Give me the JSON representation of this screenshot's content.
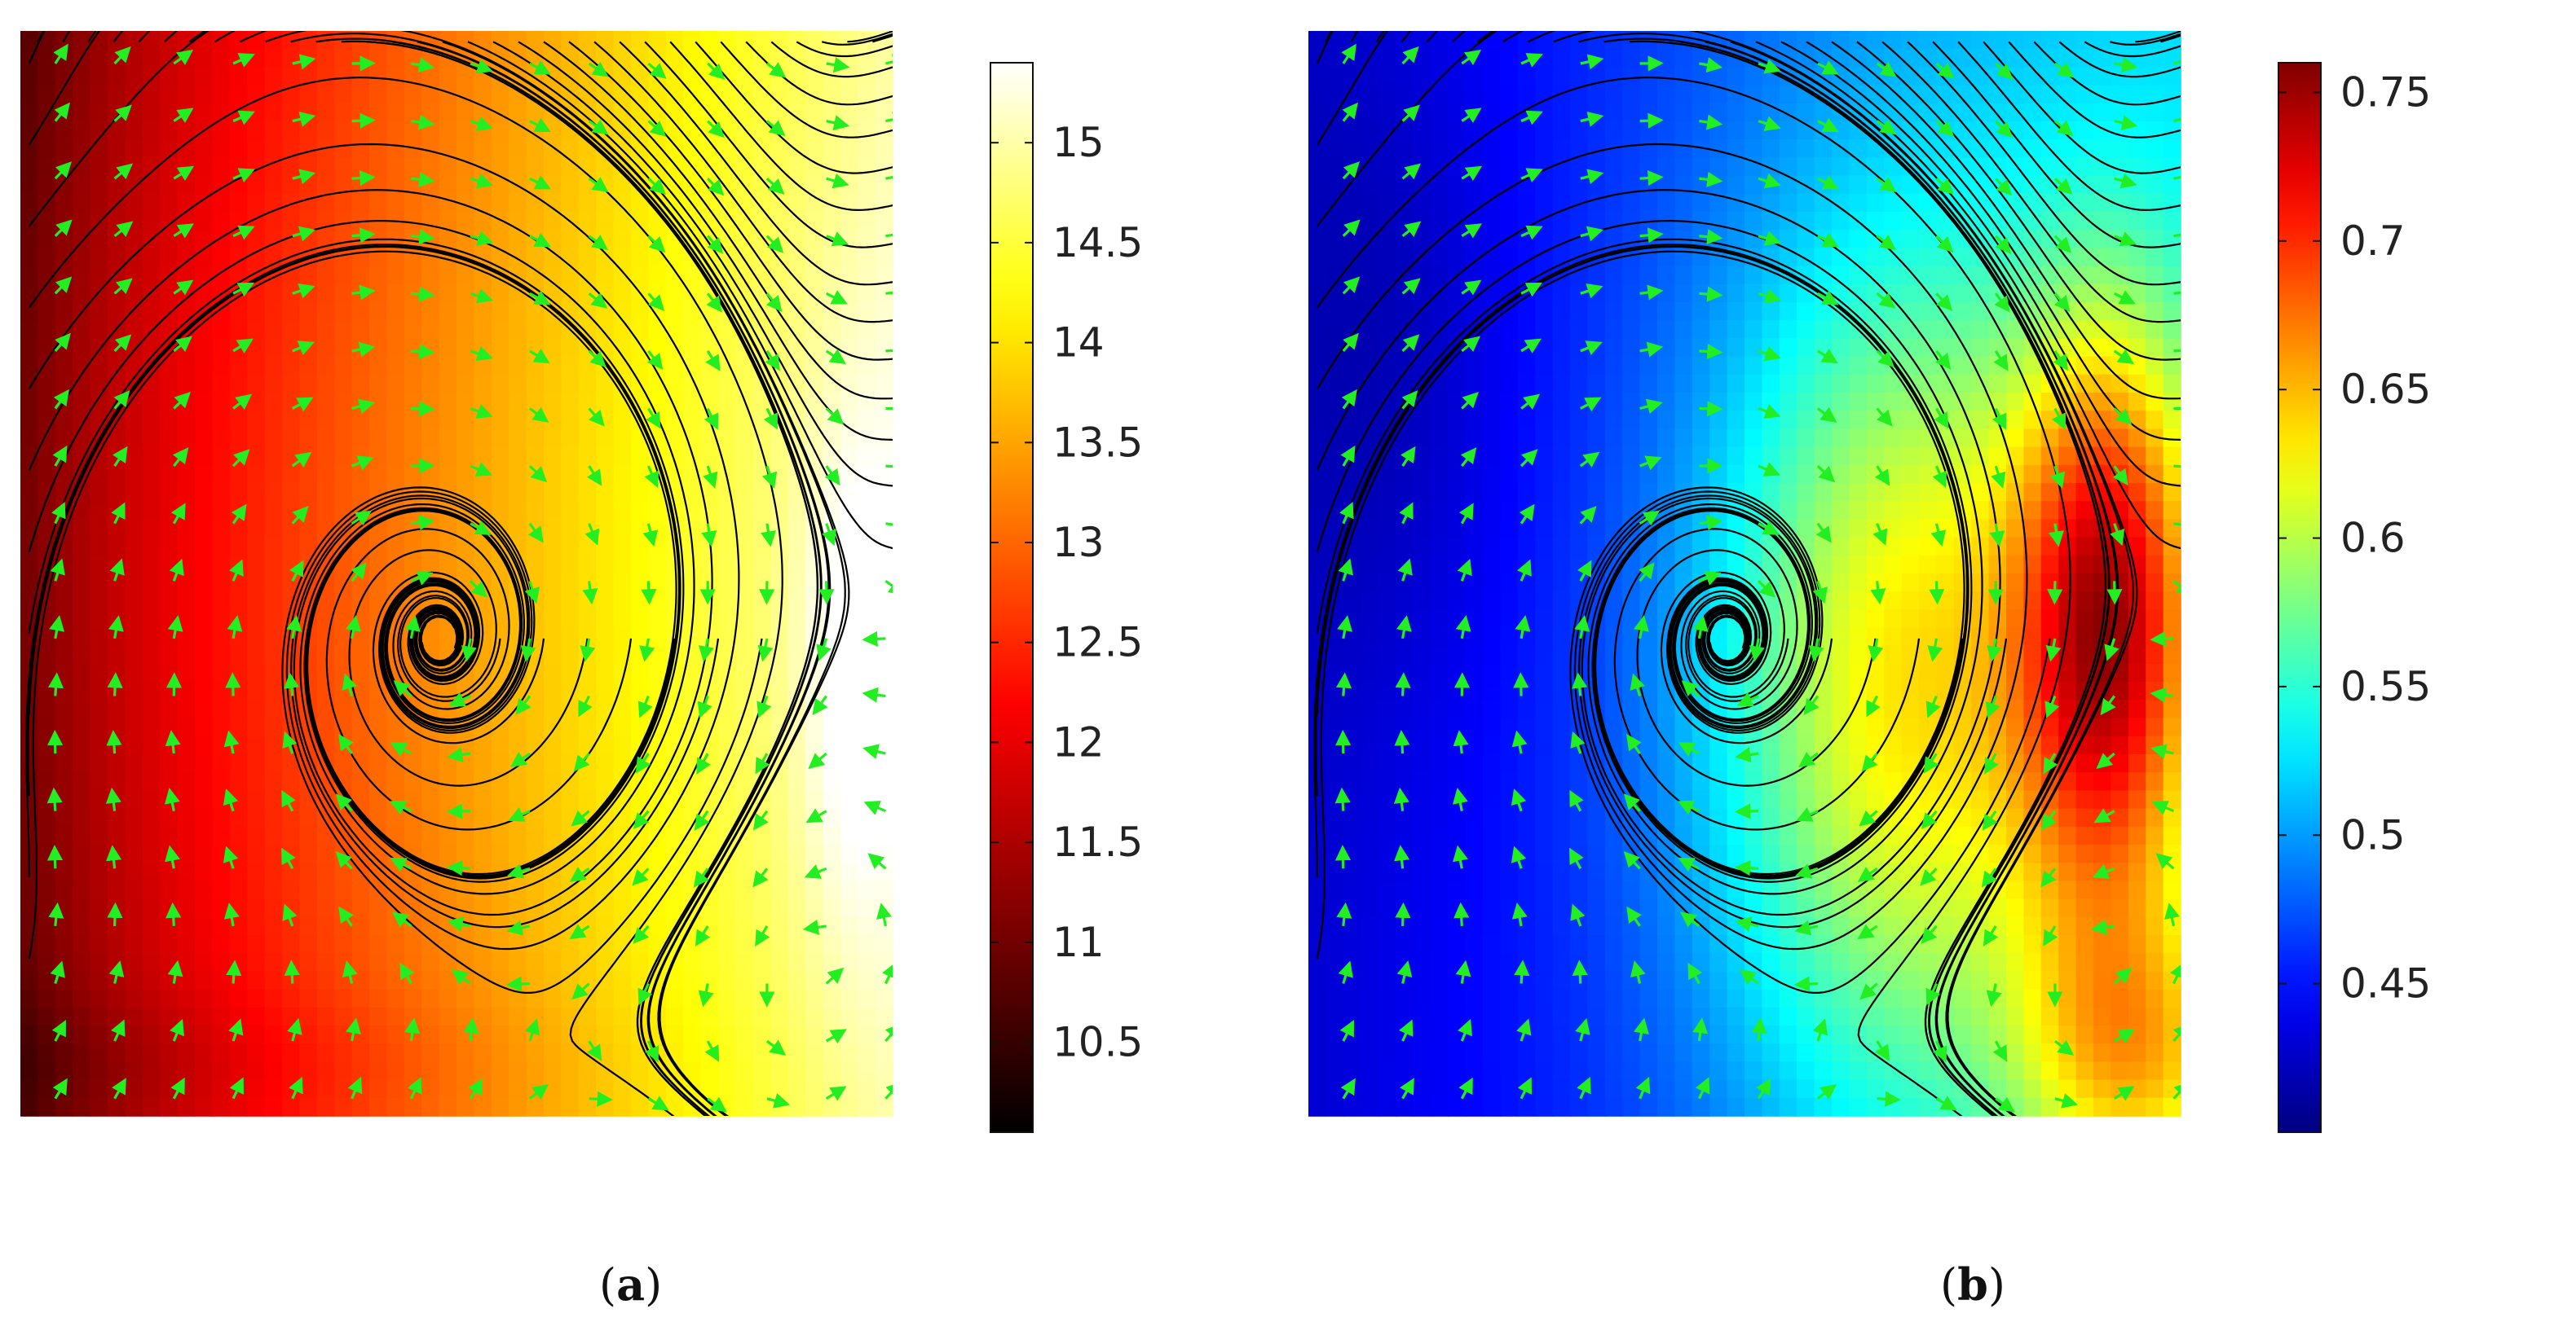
{
  "chart_data": [
    {
      "type": "heatmap",
      "panel_label": "a",
      "colormap": "hot",
      "colorbar": {
        "range": [
          10.05,
          15.4
        ],
        "ticks": [
          10.5,
          11,
          11.5,
          12,
          12.5,
          13,
          13.5,
          14,
          14.5,
          15
        ],
        "tick_labels": [
          "10.5",
          "11",
          "11.5",
          "12",
          "12.5",
          "13",
          "13.5",
          "14",
          "14.5",
          "15"
        ]
      },
      "overlays": [
        "streamlines",
        "velocity-arrows"
      ],
      "vortex_center": [
        0.48,
        0.56
      ],
      "colors": {
        "streamline": "#000000",
        "arrow": "#22ee22"
      }
    },
    {
      "type": "heatmap",
      "panel_label": "b",
      "colormap": "jet",
      "colorbar": {
        "range": [
          0.4,
          0.76
        ],
        "ticks": [
          0.45,
          0.5,
          0.55,
          0.6,
          0.65,
          0.7,
          0.75
        ],
        "tick_labels": [
          "0.45",
          "0.5",
          "0.55",
          "0.6",
          "0.65",
          "0.7",
          "0.75"
        ]
      },
      "overlays": [
        "streamlines",
        "velocity-arrows"
      ],
      "vortex_center": [
        0.48,
        0.56
      ],
      "colors": {
        "streamline": "#000000",
        "arrow": "#22ee22"
      }
    }
  ]
}
